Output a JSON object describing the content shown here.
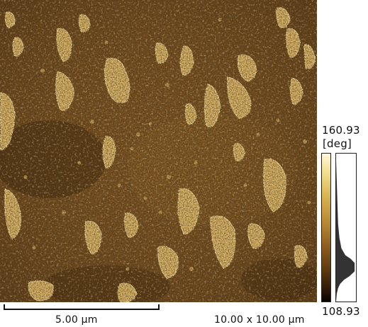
{
  "image": {
    "type": "AFM phase image",
    "colormap": [
      "#080402",
      "#2a1606",
      "#5a3610",
      "#8a5a1c",
      "#b68432",
      "#d8b050",
      "#f0dc88",
      "#fff8d8"
    ]
  },
  "colorbar": {
    "max_label": "160.93",
    "unit_label": "[deg]",
    "min_label": "108.93",
    "max_value": 160.93,
    "min_value": 108.93
  },
  "scale_bar": {
    "label": "5.00 µm"
  },
  "scan_size": {
    "label": "10.00 x 10.00 µm"
  }
}
